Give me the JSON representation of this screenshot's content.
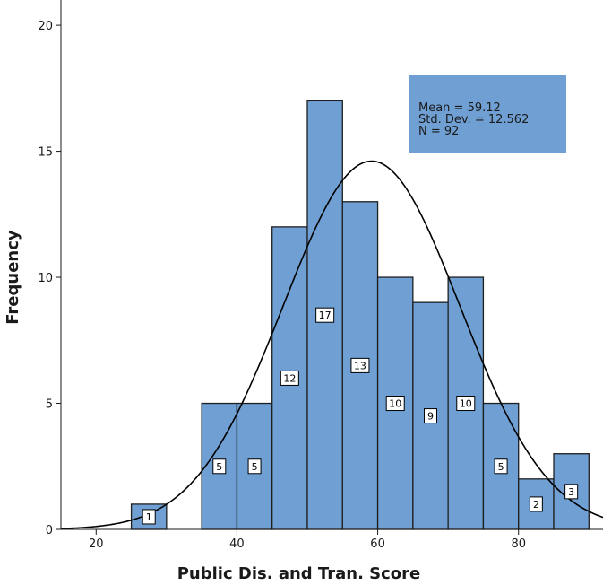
{
  "chart_data": {
    "type": "bar",
    "title": "",
    "xlabel": "Public Dis. and Tran. Score",
    "ylabel": "Frequency",
    "xlim": [
      15,
      92
    ],
    "ylim": [
      0,
      21
    ],
    "x_ticks": [
      20,
      40,
      60,
      80
    ],
    "y_ticks": [
      0,
      5,
      10,
      15,
      20
    ],
    "bin_width": 5,
    "bins": [
      {
        "start": 25,
        "end": 30,
        "value": 1
      },
      {
        "start": 35,
        "end": 40,
        "value": 5
      },
      {
        "start": 40,
        "end": 45,
        "value": 5
      },
      {
        "start": 45,
        "end": 50,
        "value": 12
      },
      {
        "start": 50,
        "end": 55,
        "value": 17
      },
      {
        "start": 55,
        "end": 60,
        "value": 13
      },
      {
        "start": 60,
        "end": 65,
        "value": 10
      },
      {
        "start": 65,
        "end": 70,
        "value": 9
      },
      {
        "start": 70,
        "end": 75,
        "value": 10
      },
      {
        "start": 75,
        "end": 80,
        "value": 5
      },
      {
        "start": 80,
        "end": 85,
        "value": 2
      },
      {
        "start": 85,
        "end": 90,
        "value": 3
      }
    ],
    "normal_curve": {
      "mean": 59.12,
      "std_dev": 12.562,
      "n": 92
    },
    "stats_box": {
      "lines": [
        "Mean = 59.12",
        "Std. Dev. = 12.562",
        "N = 92"
      ]
    },
    "grid": false,
    "legend": "top-right"
  },
  "colors": {
    "bar_fill": "#6f9fd3",
    "bar_stroke": "#1f1f1f",
    "curve": "#000000",
    "stats_box_fill": "#6f9fd3",
    "label_box_fill": "#ffffff",
    "label_box_stroke": "#000000",
    "axis": "#1a1a1a"
  }
}
